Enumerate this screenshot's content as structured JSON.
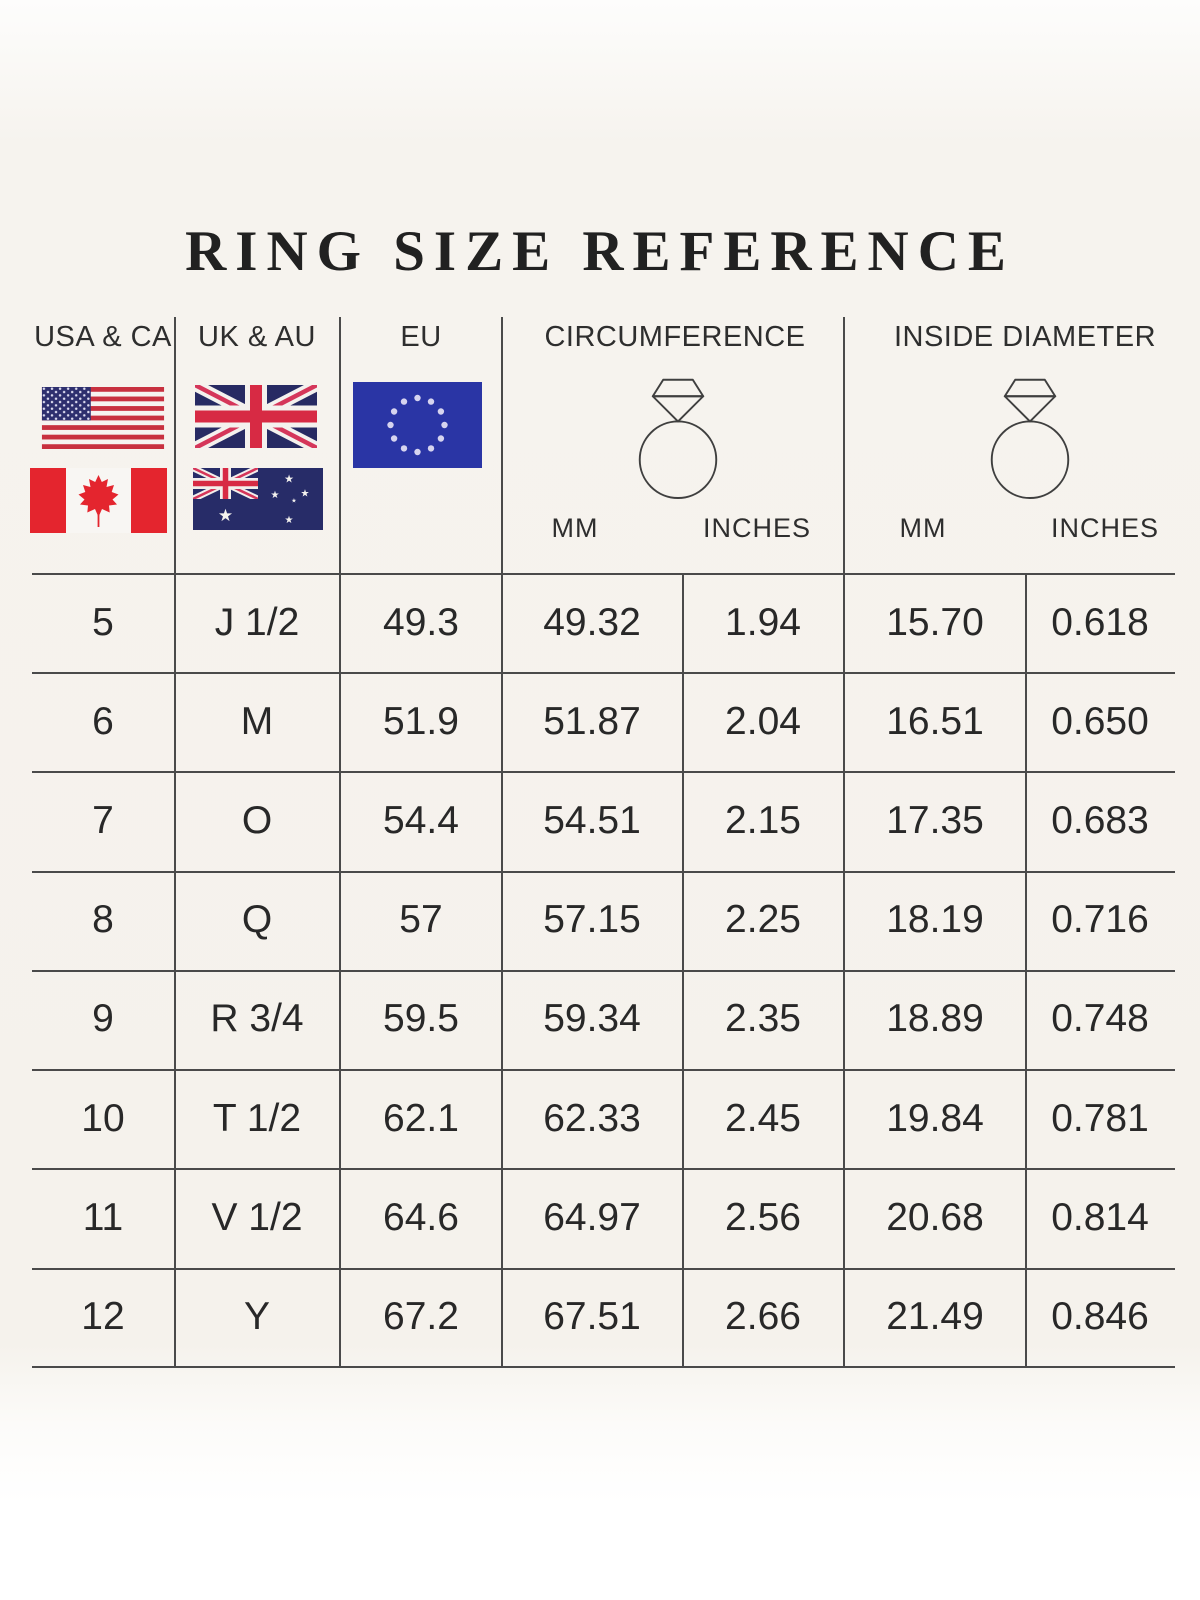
{
  "title": "RING SIZE REFERENCE",
  "header": {
    "usa_ca": "USA & CA",
    "uk_au": "UK & AU",
    "eu": "EU",
    "circumference": "CIRCUMFERENCE",
    "inside_diameter": "INSIDE DIAMETER",
    "mm": "MM",
    "inches": "INCHES"
  },
  "icons": {
    "usa_ca": [
      "us-flag-icon",
      "canada-flag-icon"
    ],
    "uk_au": [
      "uk-flag-icon",
      "australia-flag-icon"
    ],
    "eu": [
      "eu-flag-icon"
    ],
    "circumference": [
      "diamond-ring-icon"
    ],
    "inside_diameter": [
      "diamond-ring-icon"
    ]
  },
  "colors": {
    "background": "#f5f2ec",
    "table_line": "#4a4a4a",
    "text": "#2b2b2b",
    "flag_red": "#d72a44",
    "canada_red": "#e4252e",
    "us_stripe_red": "#c8303f",
    "flag_navy": "#272c68",
    "eu_blue": "#2a35a5"
  },
  "chart_data": {
    "type": "table",
    "title": "RING SIZE REFERENCE",
    "column_groups": [
      "USA & CA",
      "UK & AU",
      "EU",
      "CIRCUMFERENCE (MM)",
      "CIRCUMFERENCE (INCHES)",
      "INSIDE DIAMETER (MM)",
      "INSIDE DIAMETER (INCHES)"
    ],
    "rows": [
      [
        "5",
        "J 1/2",
        "49.3",
        "49.32",
        "1.94",
        "15.70",
        "0.618"
      ],
      [
        "6",
        "M",
        "51.9",
        "51.87",
        "2.04",
        "16.51",
        "0.650"
      ],
      [
        "7",
        "O",
        "54.4",
        "54.51",
        "2.15",
        "17.35",
        "0.683"
      ],
      [
        "8",
        "Q",
        "57",
        "57.15",
        "2.25",
        "18.19",
        "0.716"
      ],
      [
        "9",
        "R 3/4",
        "59.5",
        "59.34",
        "2.35",
        "18.89",
        "0.748"
      ],
      [
        "10",
        "T 1/2",
        "62.1",
        "62.33",
        "2.45",
        "19.84",
        "0.781"
      ],
      [
        "11",
        "V 1/2",
        "64.6",
        "64.97",
        "2.56",
        "20.68",
        "0.814"
      ],
      [
        "12",
        "Y",
        "67.2",
        "67.51",
        "2.66",
        "21.49",
        "0.846"
      ]
    ]
  }
}
